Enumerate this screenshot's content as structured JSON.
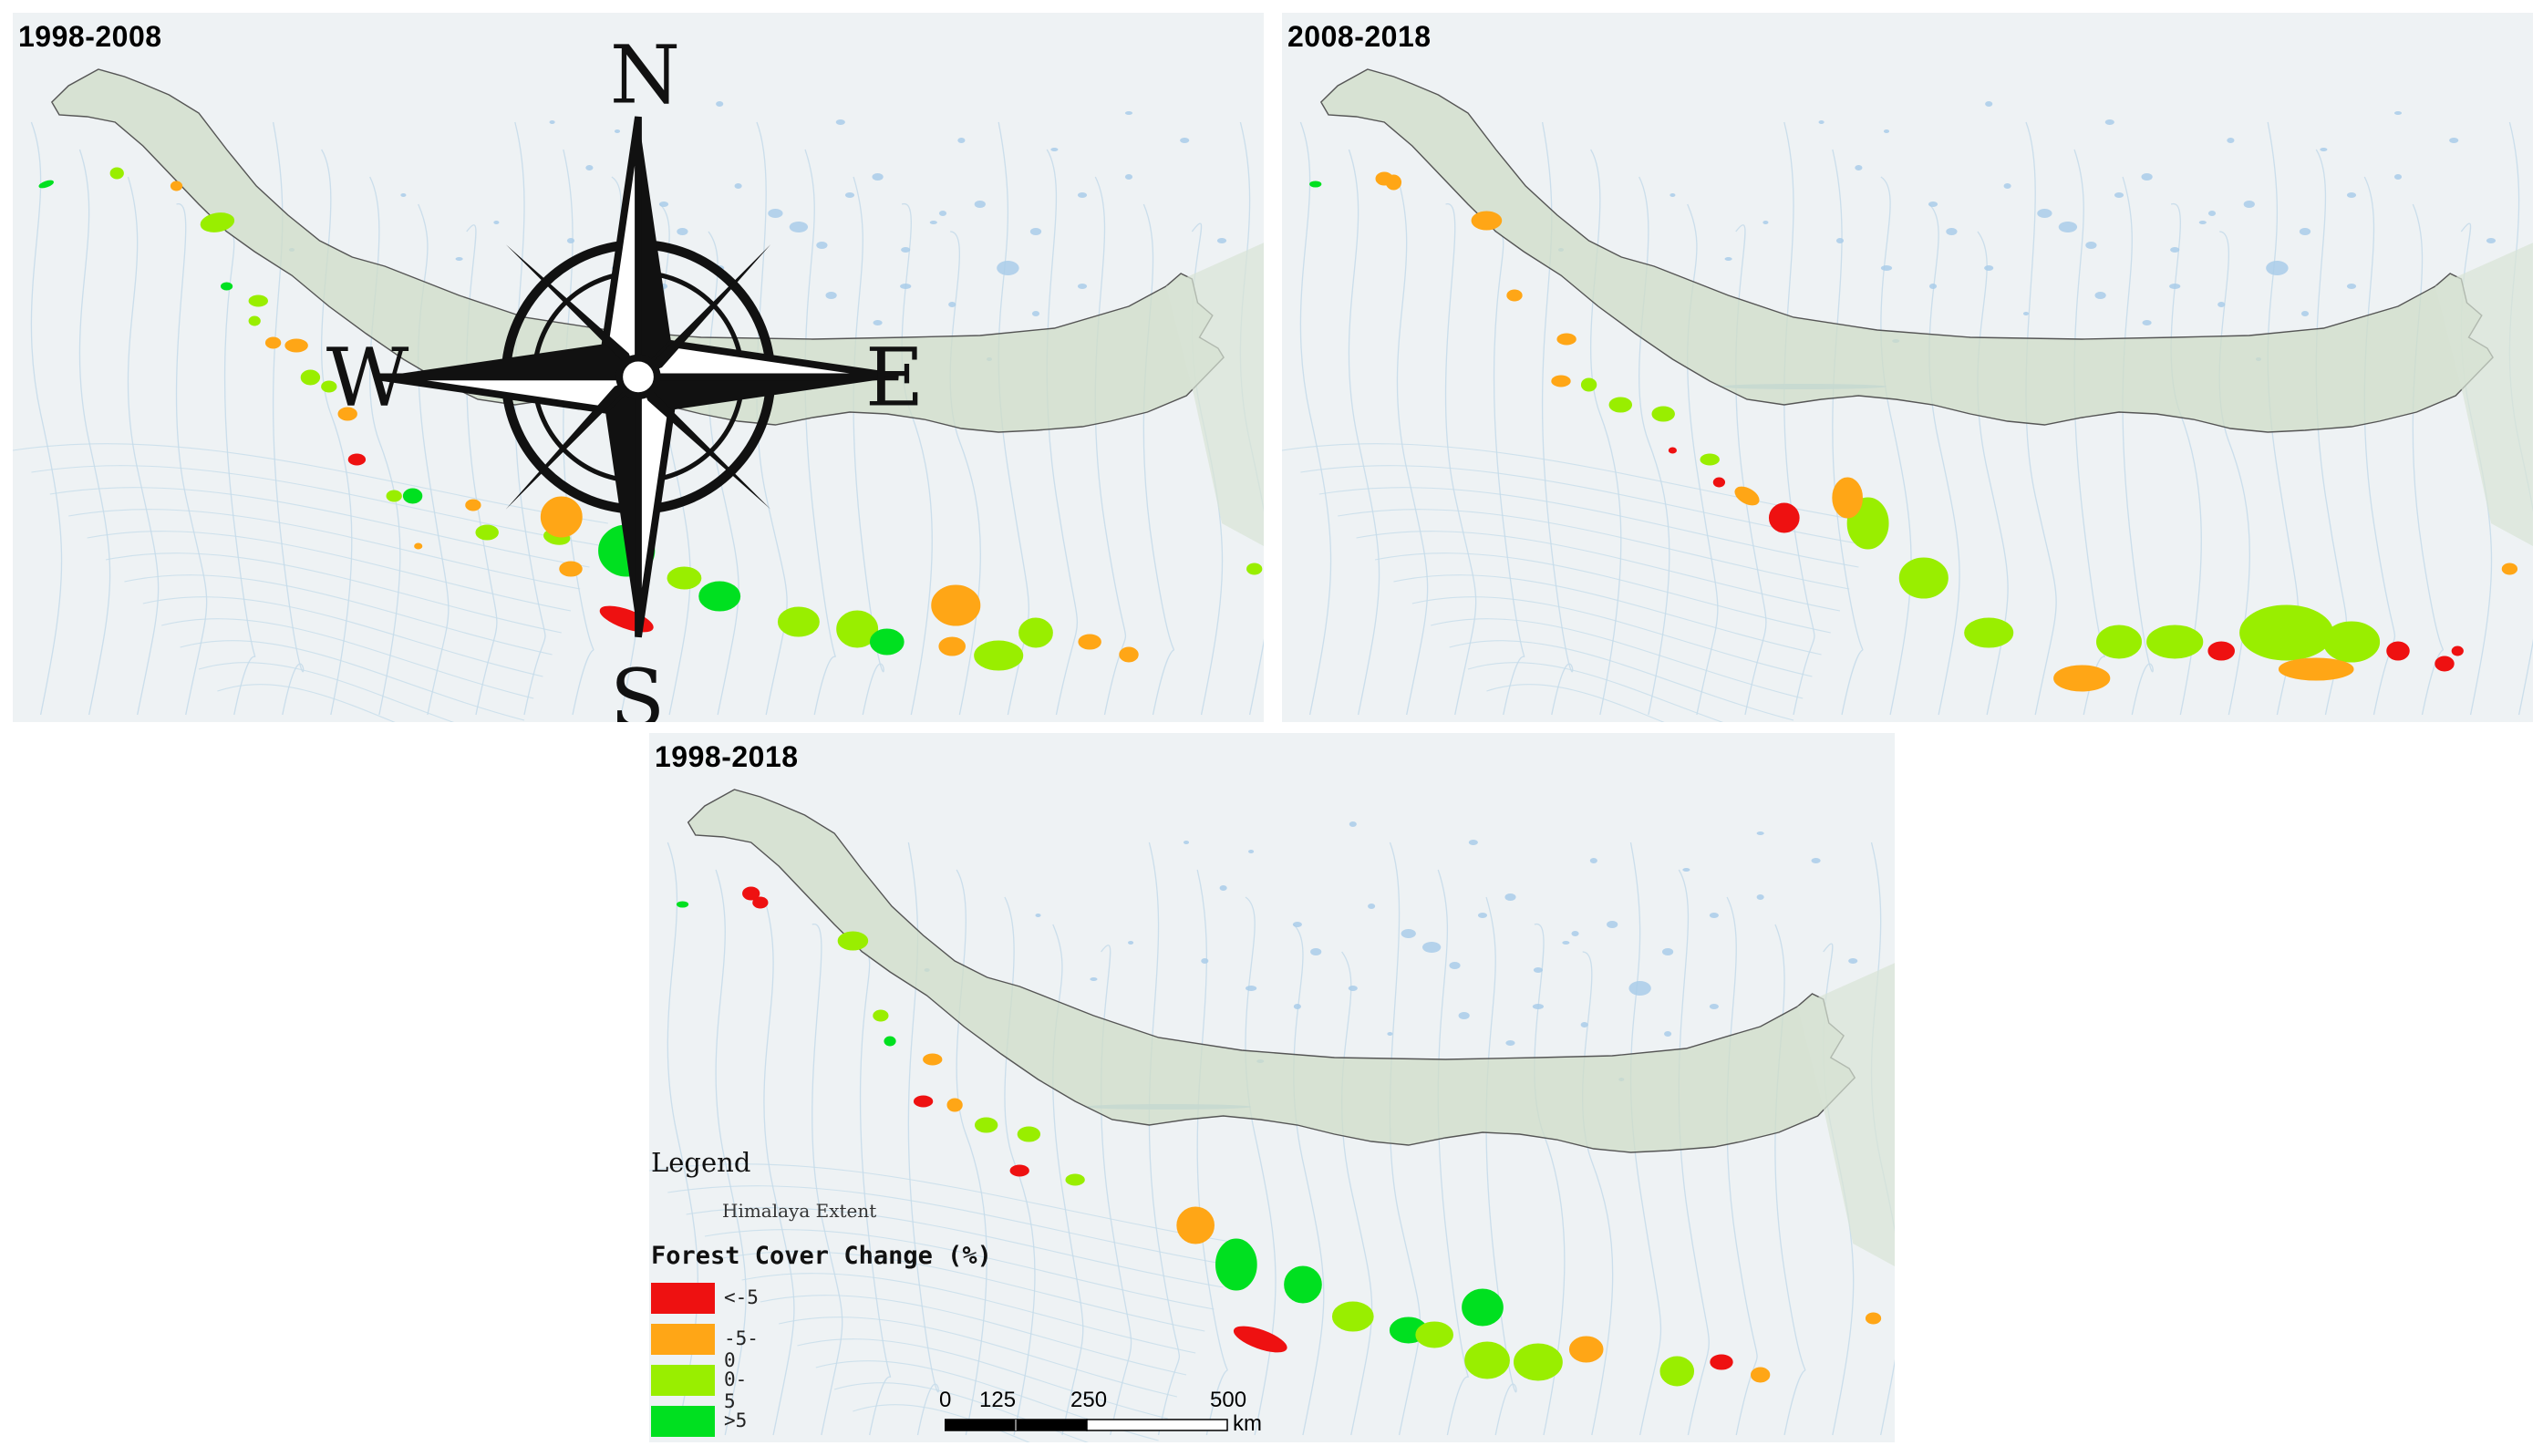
{
  "panels": [
    {
      "id": "a",
      "title": "1998-2008"
    },
    {
      "id": "b",
      "title": "2008-2018"
    },
    {
      "id": "c",
      "title": "1998-2018"
    }
  ],
  "compass": {
    "n": "N",
    "s": "S",
    "e": "E",
    "w": "W",
    "icon": "compass-rose-icon"
  },
  "legend": {
    "title": "Legend",
    "extent_label": "Himalaya Extent",
    "fcc_title": "Forest Cover Change (%)",
    "classes": [
      {
        "label": "<-5",
        "color": "#ee1111"
      },
      {
        "label": "-5-0",
        "color": "#ffa616"
      },
      {
        "label": "0-5",
        "color": "#99ee00"
      },
      {
        "label": ">5",
        "color": "#00e020"
      }
    ]
  },
  "scalebar": {
    "ticks": [
      "0",
      "125",
      "250",
      "500"
    ],
    "unit": "km"
  },
  "colors": {
    "background": "#eef2f4",
    "himalaya_fill": "#cfdcc8",
    "water": "#a9cde9",
    "boundary": "#555555"
  }
}
